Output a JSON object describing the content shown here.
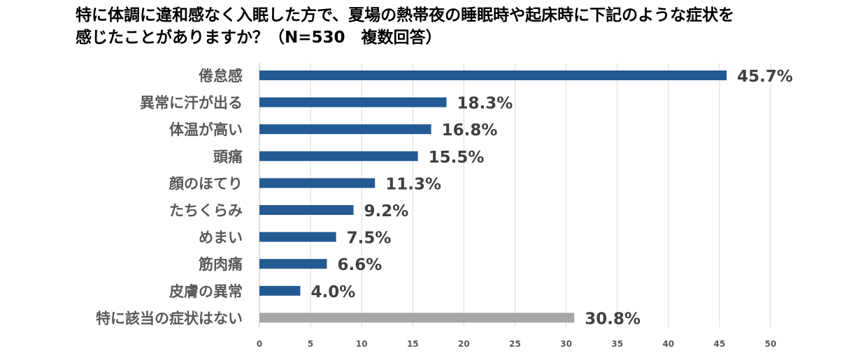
{
  "title": {
    "line1": "特に体調に違和感なく入眠した方で、夏場の熱帯夜の睡眠時や起床時に下記のような症状を",
    "line2": "感じたことがありますか？（N=530　複数回答）"
  },
  "chart_data": {
    "type": "bar",
    "orientation": "horizontal",
    "categories": [
      "倦怠感",
      "異常に汗が出る",
      "体温が高い",
      "頭痛",
      "顔のほてり",
      "たちくらみ",
      "めまい",
      "筋肉痛",
      "皮膚の異常",
      "特に該当の症状はない"
    ],
    "values": [
      45.7,
      18.3,
      16.8,
      15.5,
      11.3,
      9.2,
      7.5,
      6.6,
      4.0,
      30.8
    ],
    "value_labels": [
      "45.7%",
      "18.3%",
      "16.8%",
      "15.5%",
      "11.3%",
      "9.2%",
      "7.5%",
      "6.6%",
      "4.0%",
      "30.8%"
    ],
    "xlim": [
      0,
      50
    ],
    "ticks": [
      0,
      5,
      10,
      15,
      20,
      25,
      30,
      35,
      40,
      45,
      50
    ],
    "tick_labels": [
      "0",
      "5",
      "10",
      "15",
      "20",
      "25",
      "30",
      "35",
      "40",
      "45",
      "50"
    ],
    "grid": true,
    "xlabel": "",
    "ylabel": "",
    "colors": {
      "bar": "#245A92",
      "bar_none": "#A6A6A6",
      "grid": "#D9D9D9",
      "axis": "#BFBFBF"
    }
  }
}
